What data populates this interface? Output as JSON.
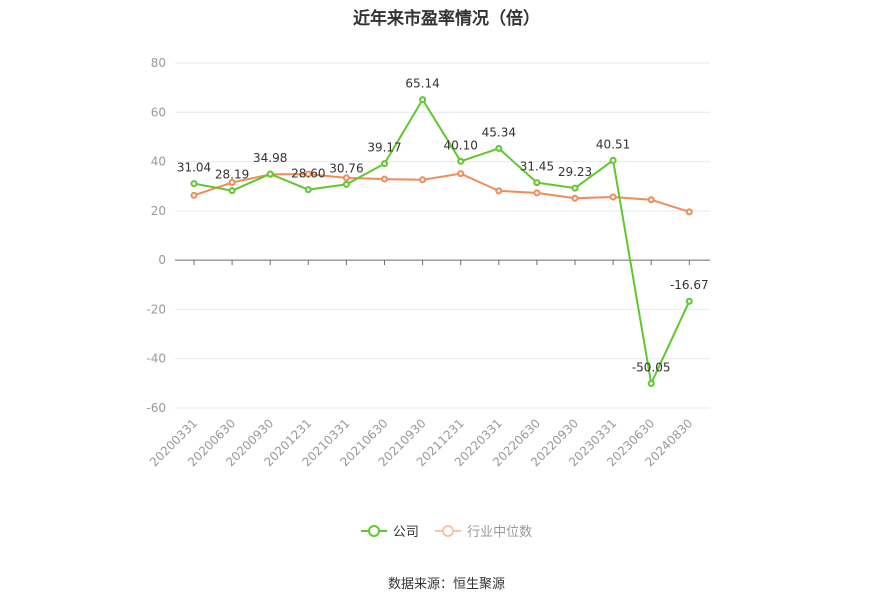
{
  "chart_data": {
    "type": "line",
    "title": "近年来市盈率情况（倍）",
    "categories": [
      "20200331",
      "20200630",
      "20200930",
      "20201231",
      "20210331",
      "20210630",
      "20210930",
      "20211231",
      "20220331",
      "20220630",
      "20220930",
      "20230331",
      "20230630",
      "20240830"
    ],
    "series": [
      {
        "name": "公司",
        "color": "#5fc82f",
        "values": [
          31.04,
          28.19,
          34.98,
          28.6,
          30.76,
          39.17,
          65.14,
          40.1,
          45.34,
          31.45,
          29.23,
          40.51,
          -50.05,
          -16.67
        ],
        "labels": [
          "31.04",
          "28.19",
          "34.98",
          "28.60",
          "30.76",
          "39.17",
          "65.14",
          "40.10",
          "45.34",
          "31.45",
          "29.23",
          "40.51",
          "-50.05",
          "-16.67"
        ]
      },
      {
        "name": "行业中位数",
        "color": "#ef8c57",
        "values": [
          26.3,
          31.5,
          34.8,
          34.9,
          33.4,
          32.9,
          32.6,
          35.1,
          28.1,
          27.3,
          25.1,
          25.6,
          24.5,
          19.6
        ]
      }
    ],
    "ylim": [
      -60,
      80
    ],
    "yticks": [
      80,
      60,
      40,
      20,
      0,
      -20,
      -40,
      -60
    ],
    "grid": true,
    "legend_position": "bottom"
  },
  "source": "数据来源：恒生聚源"
}
